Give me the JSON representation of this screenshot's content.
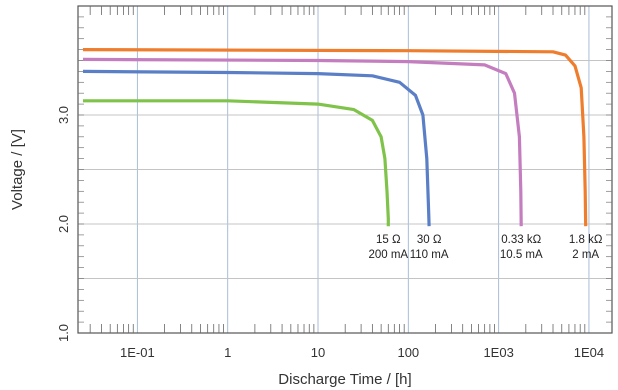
{
  "chart_data": {
    "type": "line",
    "title": "",
    "xlabel": "Discharge Time / [h]",
    "ylabel": "Voltage / [V]",
    "x_scale": "log",
    "xlim": [
      0.022,
      18000
    ],
    "ylim": [
      1.0,
      4.0
    ],
    "x_ticks": [
      {
        "value": 0.1,
        "label": "1E-01"
      },
      {
        "value": 1,
        "label": "1"
      },
      {
        "value": 10,
        "label": "10"
      },
      {
        "value": 100,
        "label": "100"
      },
      {
        "value": 1000,
        "label": "1E03"
      },
      {
        "value": 10000,
        "label": "1E04"
      }
    ],
    "y_ticks": [
      {
        "value": 1.0,
        "label": "1.0"
      },
      {
        "value": 2.0,
        "label": "2.0"
      },
      {
        "value": 3.0,
        "label": "3.0"
      }
    ],
    "grid": true,
    "series": [
      {
        "color": "#7fc34a",
        "x": [
          0.025,
          1,
          10,
          25,
          40,
          50,
          55,
          58,
          60,
          60
        ],
        "y": [
          3.13,
          3.13,
          3.1,
          3.05,
          2.95,
          2.8,
          2.6,
          2.3,
          2.05,
          1.98
        ]
      },
      {
        "color": "#5a7fc6",
        "x": [
          0.025,
          1,
          10,
          40,
          80,
          120,
          145,
          160,
          168,
          170
        ],
        "y": [
          3.4,
          3.39,
          3.38,
          3.36,
          3.3,
          3.18,
          3.0,
          2.6,
          2.1,
          1.98
        ]
      },
      {
        "color": "#c47dbf",
        "x": [
          0.025,
          10,
          100,
          700,
          1200,
          1500,
          1700,
          1760,
          1780
        ],
        "y": [
          3.51,
          3.5,
          3.49,
          3.46,
          3.38,
          3.2,
          2.8,
          2.3,
          1.98
        ]
      },
      {
        "color": "#ef7d2e",
        "x": [
          0.025,
          100,
          4000,
          5500,
          7000,
          8200,
          8800,
          9100,
          9200
        ],
        "y": [
          3.6,
          3.59,
          3.58,
          3.55,
          3.45,
          3.25,
          2.8,
          2.3,
          1.98
        ]
      }
    ],
    "annotations": [
      {
        "line1": "15 Ω",
        "line2": "200 mA",
        "x": 60
      },
      {
        "line1": "30 Ω",
        "line2": "110 mA",
        "x": 170
      },
      {
        "line1": "0.33 kΩ",
        "line2": "10.5 mA",
        "x": 1780
      },
      {
        "line1": "1.8 kΩ",
        "line2": "2 mA",
        "x": 9200
      }
    ]
  }
}
